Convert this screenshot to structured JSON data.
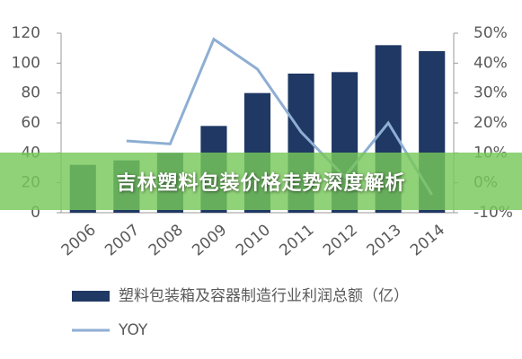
{
  "chart_data": {
    "type": "bar",
    "title": "吉林塑料包装价格走势深度解析",
    "categories": [
      "2006",
      "2007",
      "2008",
      "2009",
      "2010",
      "2011",
      "2012",
      "2013",
      "2014"
    ],
    "series": [
      {
        "name": "塑料包装箱及容器制造行业利润总额（亿）",
        "type": "bar",
        "color": "#1f3864",
        "values": [
          32,
          35,
          40,
          58,
          80,
          93,
          94,
          112,
          108
        ]
      },
      {
        "name": "YOY",
        "type": "line",
        "axis": "y2",
        "color": "#8eaed3",
        "values": [
          null,
          14,
          13,
          48,
          38,
          17,
          2,
          20,
          -4
        ]
      }
    ],
    "ylim": [
      0,
      120
    ],
    "yticks": [
      0,
      20,
      40,
      60,
      80,
      100,
      120
    ],
    "y2lim": [
      -10,
      50
    ],
    "y2ticks": [
      {
        "value": -10,
        "label": "-10%"
      },
      {
        "value": 0,
        "label": "0%"
      },
      {
        "value": 10,
        "label": "10%"
      },
      {
        "value": 20,
        "label": "20%"
      },
      {
        "value": 30,
        "label": "30%"
      },
      {
        "value": 40,
        "label": "40%"
      },
      {
        "value": 50,
        "label": "50%"
      }
    ]
  }
}
